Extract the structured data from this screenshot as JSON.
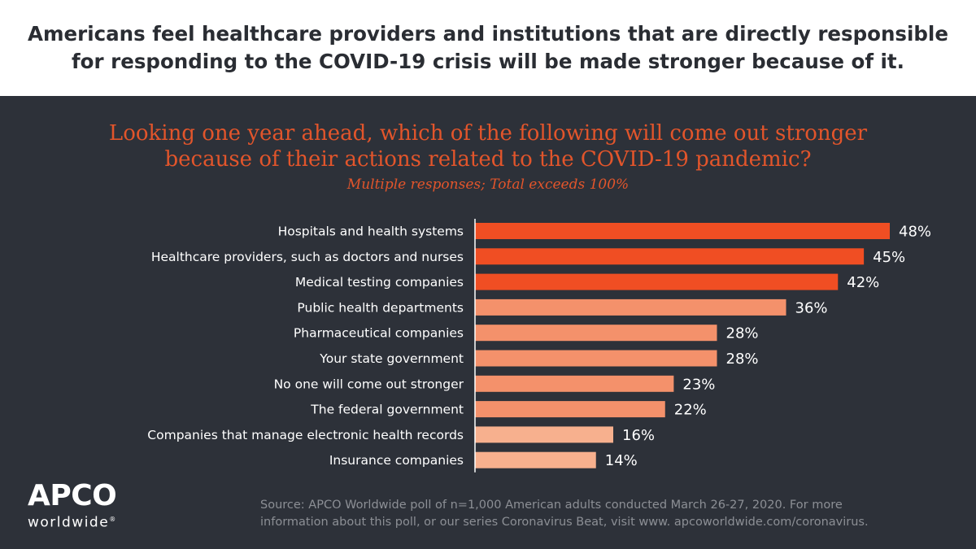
{
  "header": {
    "line1": "Americans feel healthcare providers and institutions that are directly responsible",
    "line2": "for responding to the COVID-19 crisis will be made stronger because of it."
  },
  "question": {
    "line1": "Looking one year ahead, which of the following will come out stronger",
    "line2": "because of their actions related to the COVID-19 pandemic?",
    "note": "Multiple responses; Total exceeds 100%"
  },
  "chart_data": {
    "type": "bar",
    "orientation": "horizontal",
    "categories": [
      "Hospitals and health systems",
      "Healthcare providers, such as doctors and nurses",
      "Medical testing companies",
      "Public health departments",
      "Pharmaceutical companies",
      "Your state government",
      "No one will come out stronger",
      "The federal government",
      "Companies that manage electronic health records",
      "Insurance companies"
    ],
    "values": [
      48,
      45,
      42,
      36,
      28,
      28,
      23,
      22,
      16,
      14
    ],
    "value_labels": [
      "48%",
      "45%",
      "42%",
      "36%",
      "28%",
      "28%",
      "23%",
      "22%",
      "16%",
      "14%"
    ],
    "bar_colors": [
      "#f04e23",
      "#f04e23",
      "#f04e23",
      "#f4916b",
      "#f4916b",
      "#f4916b",
      "#f4916b",
      "#f4916b",
      "#f7b08e",
      "#f7b08e"
    ],
    "xlim": [
      0,
      48
    ],
    "grid": false,
    "axis_color": "#ffffff"
  },
  "logo": {
    "name": "APCO",
    "sub": "worldwide",
    "mark": "®"
  },
  "source": {
    "line1": "Source: APCO Worldwide poll of n=1,000 American adults conducted March 26-27, 2020. For more",
    "line2": "information about this poll, or our series Coronavirus Beat, visit www. apcoworldwide.com/coronavirus."
  },
  "colors": {
    "panel_bg": "#2d3139",
    "accent": "#e2552b",
    "text_light": "#ffffff",
    "header_text": "#2a2d33",
    "source_text": "#8c8f95"
  }
}
